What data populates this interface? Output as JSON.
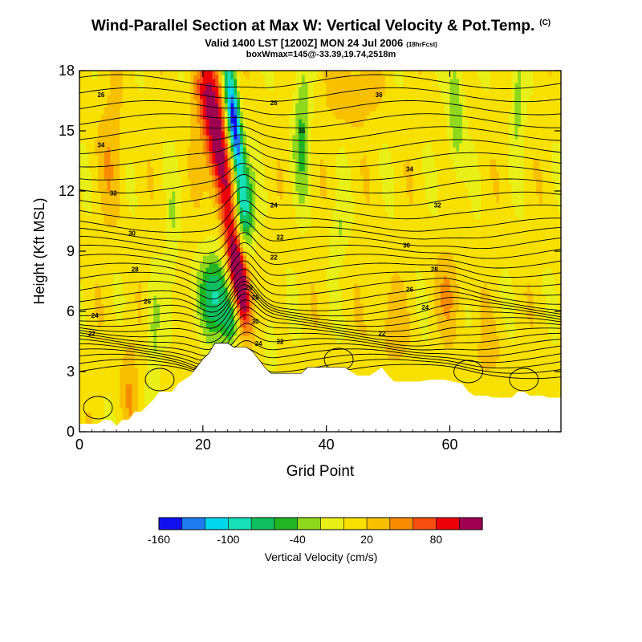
{
  "chart_data": {
    "type": "heatmap",
    "title": "Wind-Parallel Section at Max W: Vertical Velocity & Pot.Temp.",
    "title_mark": "(C)",
    "subtitle": "Valid 1400 LST [1200Z] MON 24 Jul 2006",
    "subtitle_note": "(18hrFcst)",
    "subtitle2": "boxWmax=145@-33.39,19.74,2518m",
    "xlabel": "Grid Point",
    "ylabel": "Height (Kft MSL)",
    "xlim": [
      0,
      78
    ],
    "ylim": [
      0,
      18
    ],
    "x_ticks": [
      "0",
      "20",
      "40",
      "60"
    ],
    "x_tick_values": [
      0,
      20,
      40,
      60
    ],
    "y_ticks": [
      "0",
      "3",
      "6",
      "9",
      "12",
      "15",
      "18"
    ],
    "y_tick_values": [
      0,
      3,
      6,
      9,
      12,
      15,
      18
    ],
    "terrain": [
      [
        0,
        0.4
      ],
      [
        3,
        0.4
      ],
      [
        4,
        0.6
      ],
      [
        5,
        0.6
      ],
      [
        6,
        0.3
      ],
      [
        7,
        0.6
      ],
      [
        8,
        0.6
      ],
      [
        9,
        1.0
      ],
      [
        10,
        1.0
      ],
      [
        11,
        1.3
      ],
      [
        12,
        1.6
      ],
      [
        13,
        2.0
      ],
      [
        15,
        2.0
      ],
      [
        16,
        2.4
      ],
      [
        17,
        2.6
      ],
      [
        18,
        2.8
      ],
      [
        19,
        3.2
      ],
      [
        20,
        3.6
      ],
      [
        21,
        3.9
      ],
      [
        22,
        4.4
      ],
      [
        24,
        4.4
      ],
      [
        25,
        4.2
      ],
      [
        27,
        4.2
      ],
      [
        28,
        4.0
      ],
      [
        29,
        3.6
      ],
      [
        30,
        3.2
      ],
      [
        31,
        2.9
      ],
      [
        33,
        2.9
      ],
      [
        34,
        2.9
      ],
      [
        36,
        2.9
      ],
      [
        37,
        3.2
      ],
      [
        38,
        3.2
      ],
      [
        40,
        3.2
      ],
      [
        43,
        3.2
      ],
      [
        44,
        3.0
      ],
      [
        45,
        2.8
      ],
      [
        47,
        2.8
      ],
      [
        48,
        3.0
      ],
      [
        49,
        3.2
      ],
      [
        50,
        2.8
      ],
      [
        51,
        2.5
      ],
      [
        55,
        2.5
      ],
      [
        57,
        2.6
      ],
      [
        59,
        2.6
      ],
      [
        62,
        2.4
      ],
      [
        63,
        2.0
      ],
      [
        64,
        1.8
      ],
      [
        66,
        1.8
      ],
      [
        67,
        1.7
      ],
      [
        70,
        1.7
      ],
      [
        71,
        2.0
      ],
      [
        72,
        2.0
      ],
      [
        73,
        1.8
      ],
      [
        75,
        1.8
      ],
      [
        76,
        1.7
      ],
      [
        78,
        1.7
      ]
    ],
    "color_scale": {
      "label": "Vertical Velocity (cm/s)",
      "tick_labels": [
        "-160",
        "-100",
        "-40",
        "20",
        "80"
      ],
      "tick_values": [
        -160,
        -100,
        -40,
        20,
        80
      ],
      "bin_edges": [
        -160,
        -140,
        -120,
        -100,
        -80,
        -60,
        -40,
        -20,
        0,
        20,
        40,
        60,
        80,
        100,
        120
      ],
      "colors": [
        "#1111f0",
        "#1f7cf0",
        "#00d6ee",
        "#18e0b6",
        "#10c060",
        "#22b422",
        "#90d81c",
        "#e8f018",
        "#f8e000",
        "#f8c000",
        "#f88c00",
        "#f85010",
        "#ee0008",
        "#a00050"
      ]
    },
    "features": [
      {
        "type": "updraft",
        "x": 26.5,
        "z": 6.5,
        "w": 145
      },
      {
        "type": "downdraft",
        "x": 25,
        "z": 16,
        "w": -160
      },
      {
        "type": "downdraft",
        "x": 22,
        "z": 7,
        "w": -80
      },
      {
        "type": "updraft",
        "x": 23,
        "z": 15,
        "w": 100
      }
    ],
    "contour_labels": [
      "26",
      "34",
      "32",
      "30",
      "28",
      "26",
      "24",
      "22",
      "26",
      "24",
      "22",
      "20",
      "22",
      "28",
      "30",
      "32",
      "34",
      "36",
      "36",
      "34",
      "32",
      "30",
      "28",
      "26",
      "24",
      "22"
    ]
  }
}
